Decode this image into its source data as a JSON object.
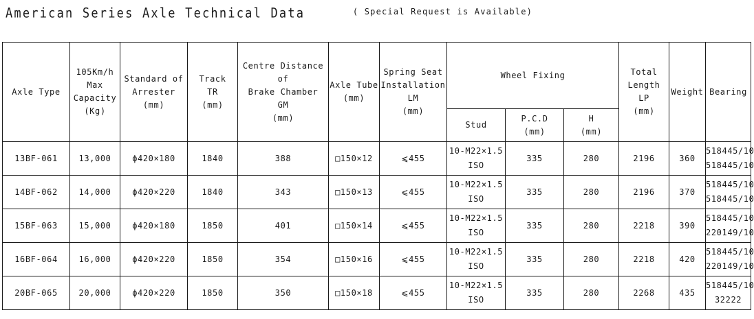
{
  "page": {
    "title": "American Series Axle Technical Data",
    "subtitle": "( Special Request is Available)"
  },
  "table": {
    "headers": {
      "axle_type": "Axle Type",
      "capacity": "105Km/h\nMax\nCapacity\n(Kg)",
      "arrester": "Standard of\nArrester\n(mm)",
      "track": "Track\nTR\n(mm)",
      "brake_chamber": "Centre Distance of\nBrake Chamber\nGM\n(mm)",
      "axle_tube": "Axle Tube\n(mm)",
      "spring_seat": "Spring Seat\nInstallation\nLM\n(mm)",
      "wheel_fixing": "Wheel Fixing",
      "stud": "Stud",
      "pcd": "P.C.D\n(mm)",
      "h": "H\n(mm)",
      "total_length": "Total\nLength\nLP\n(mm)",
      "weight": "Weight",
      "bearing": "Bearing"
    },
    "rows": [
      {
        "axle_type": "13BF-061",
        "capacity": "13,000",
        "arrester": "ϕ420×180",
        "track": "1840",
        "brake_chamber": "388",
        "axle_tube": "□150×12",
        "spring_seat": "⩽455",
        "stud": "10-M22×1.5\nISO",
        "pcd": "335",
        "h": "280",
        "total_length": "2196",
        "weight": "360",
        "bearing": "518445/10\n518445/10"
      },
      {
        "axle_type": "14BF-062",
        "capacity": "14,000",
        "arrester": "ϕ420×220",
        "track": "1840",
        "brake_chamber": "343",
        "axle_tube": "□150×13",
        "spring_seat": "⩽455",
        "stud": "10-M22×1.5\nISO",
        "pcd": "335",
        "h": "280",
        "total_length": "2196",
        "weight": "370",
        "bearing": "518445/10\n518445/10"
      },
      {
        "axle_type": "15BF-063",
        "capacity": "15,000",
        "arrester": "ϕ420×180",
        "track": "1850",
        "brake_chamber": "401",
        "axle_tube": "□150×14",
        "spring_seat": "⩽455",
        "stud": "10-M22×1.5\nISO",
        "pcd": "335",
        "h": "280",
        "total_length": "2218",
        "weight": "390",
        "bearing": "518445/10\n220149/10"
      },
      {
        "axle_type": "16BF-064",
        "capacity": "16,000",
        "arrester": "ϕ420×220",
        "track": "1850",
        "brake_chamber": "354",
        "axle_tube": "□150×16",
        "spring_seat": "⩽455",
        "stud": "10-M22×1.5\nISO",
        "pcd": "335",
        "h": "280",
        "total_length": "2218",
        "weight": "420",
        "bearing": "518445/10\n220149/10"
      },
      {
        "axle_type": "20BF-065",
        "capacity": "20,000",
        "arrester": "ϕ420×220",
        "track": "1850",
        "brake_chamber": "350",
        "axle_tube": "□150×18",
        "spring_seat": "⩽455",
        "stud": "10-M22×1.5\nISO",
        "pcd": "335",
        "h": "280",
        "total_length": "2268",
        "weight": "435",
        "bearing": "518445/10\n32222"
      }
    ]
  }
}
